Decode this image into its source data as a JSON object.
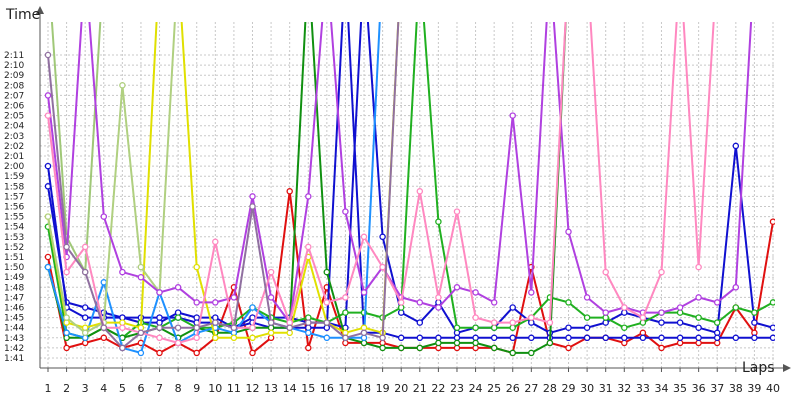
{
  "chart_data": {
    "type": "line",
    "ylabel": "Time",
    "xlabel": "Laps",
    "x_ticks": [
      "1",
      "2",
      "3",
      "4",
      "5",
      "6",
      "7",
      "8",
      "9",
      "10",
      "11",
      "12",
      "13",
      "14",
      "15",
      "16",
      "17",
      "18",
      "19",
      "20",
      "21",
      "22",
      "23",
      "24",
      "25",
      "26",
      "27",
      "28",
      "29",
      "30",
      "31",
      "32",
      "33",
      "34",
      "35",
      "36",
      "37",
      "38",
      "39",
      "40"
    ],
    "y_ticks": [
      "1:41",
      "1:42",
      "1:43",
      "1:44",
      "1:45",
      "1:46",
      "1:47",
      "1:48",
      "1:49",
      "1:50",
      "1:51",
      "1:52",
      "1:53",
      "1:54",
      "1:55",
      "1:56",
      "1:57",
      "1:58",
      "1:59",
      "2:00",
      "2:01",
      "2:02",
      "2:03",
      "2:04",
      "2:05",
      "2:06",
      "2:07",
      "2:08",
      "2:09",
      "2:10",
      "2:11"
    ],
    "xlim": [
      1,
      40
    ],
    "ylim_seconds": [
      100,
      133
    ],
    "grid": true,
    "legend": "none",
    "series": [
      {
        "color": "#e01010",
        "values": [
          111,
          102,
          102.5,
          103,
          102,
          102.5,
          101.5,
          102.5,
          101.5,
          103,
          108,
          101.5,
          103,
          117.5,
          102,
          108,
          102.5,
          102.5,
          102.5,
          102,
          102,
          102,
          102,
          102,
          102,
          101.5,
          110,
          102.5,
          102,
          103,
          103,
          102.5,
          103.5,
          102,
          102.5,
          102.5,
          102.5,
          106,
          103.5,
          114.5
        ]
      },
      {
        "color": "#1010d0",
        "values": [
          118,
          106.5,
          106,
          105.5,
          105,
          104.5,
          104.5,
          105.5,
          105,
          105,
          104,
          105,
          105,
          105,
          104.5,
          104.5,
          104,
          140,
          113,
          105.5,
          104.5,
          106.5,
          103.5,
          104,
          104,
          106,
          104.5,
          103.5,
          104,
          104,
          104.5,
          105.5,
          105,
          104.5,
          104.5,
          104,
          103.5,
          122,
          104.5,
          104
        ]
      },
      {
        "color": "#1010d0",
        "values": [
          120,
          106,
          105,
          105,
          105,
          105,
          105,
          105,
          104.5,
          104.5,
          104,
          104.5,
          104,
          104,
          104,
          104,
          140,
          103.5,
          103.5,
          103,
          103,
          103,
          103,
          103,
          103,
          103,
          103,
          103,
          103,
          103,
          103,
          103,
          103,
          103,
          103,
          103,
          103,
          103,
          103,
          103
        ]
      },
      {
        "color": "#20b020",
        "values": [
          114,
          103.5,
          103,
          104,
          103,
          104.5,
          104,
          105,
          104,
          104,
          104.5,
          106,
          105,
          104.5,
          105,
          104.5,
          105.5,
          105.5,
          105,
          106,
          140,
          114.5,
          104,
          104,
          104,
          104,
          105,
          107,
          106.5,
          105,
          105,
          104,
          104.5,
          105.5,
          105.5,
          105,
          104.5,
          106,
          105.5,
          106.5
        ]
      },
      {
        "color": "#109010",
        "values": [
          110,
          103,
          103,
          104,
          103,
          103.5,
          104,
          103,
          104,
          103.5,
          103.5,
          104,
          104,
          104,
          140,
          109.5,
          103,
          102.5,
          102,
          102,
          102,
          102.5,
          102.5,
          102.5,
          102,
          101.5,
          101.5,
          102.5,
          140,
          140,
          140,
          140,
          140,
          140,
          140,
          140,
          140,
          140,
          140,
          140
        ]
      },
      {
        "color": "#1e90ff",
        "values": [
          110,
          103.5,
          103,
          108.5,
          102,
          101.5,
          107.5,
          102.5,
          103.5,
          104,
          103.5,
          106,
          104.5,
          104,
          103.5,
          103,
          103,
          103,
          140,
          140,
          140,
          140,
          140,
          140,
          140,
          140,
          140,
          140,
          140,
          140,
          140,
          140,
          140,
          140,
          140,
          140,
          140,
          140,
          140,
          140
        ]
      },
      {
        "color": "#e0e000",
        "values": [
          115,
          104.5,
          104,
          104.5,
          104.5,
          104,
          140,
          140,
          110,
          103,
          103,
          103,
          103.5,
          103.5,
          111,
          104.5,
          103.5,
          104,
          103.5,
          140,
          140,
          140,
          140,
          140,
          140,
          140,
          140,
          140,
          140,
          140,
          140,
          140,
          140,
          140,
          140,
          140,
          140,
          140,
          140,
          140
        ]
      },
      {
        "color": "#a0c878",
        "values": [
          140,
          113,
          109.5,
          140,
          140,
          140,
          140,
          140,
          140,
          140,
          140,
          140,
          140,
          140,
          140,
          140,
          140,
          140,
          140,
          140,
          140,
          140,
          140,
          140,
          140,
          140,
          140,
          140,
          140,
          140,
          140,
          140,
          140,
          140,
          140,
          140,
          140,
          140,
          140,
          140
        ]
      },
      {
        "color": "#b0d080",
        "values": [
          115,
          105,
          103.5,
          104.5,
          128,
          110,
          107.5,
          140,
          140,
          140,
          140,
          140,
          140,
          140,
          140,
          140,
          140,
          140,
          140,
          140,
          140,
          140,
          140,
          140,
          140,
          140,
          140,
          140,
          140,
          140,
          140,
          140,
          140,
          140,
          140,
          140,
          140,
          140,
          140,
          140
        ]
      },
      {
        "color": "#b040e0",
        "values": [
          127,
          111,
          140,
          115,
          109.5,
          109,
          107.5,
          108,
          106.5,
          106.5,
          107,
          117,
          107,
          104.5,
          117,
          140,
          115.5,
          107.5,
          110,
          107,
          106.5,
          106,
          108,
          107.5,
          106.5,
          125,
          107.5,
          140,
          113.5,
          107,
          105.5,
          106,
          105.5,
          105.5,
          106,
          107,
          106.5,
          108,
          140,
          140
        ]
      },
      {
        "color": "#ff88c0",
        "values": [
          125,
          109.5,
          112,
          104,
          104,
          103.5,
          103,
          102.5,
          103,
          112.5,
          104,
          104,
          109.5,
          104.5,
          112,
          106.5,
          107,
          113,
          110,
          106.5,
          117.5,
          107,
          115.5,
          105,
          104.5,
          104.5,
          105,
          104.5,
          140,
          140,
          109.5,
          106,
          105,
          109.5,
          140,
          110,
          140,
          140,
          140,
          140
        ]
      },
      {
        "color": "#9070a0",
        "values": [
          131,
          112,
          109.5,
          104,
          102,
          103.5,
          104,
          104,
          104,
          104.5,
          104,
          116,
          104.5,
          104,
          104.5,
          104.5,
          103,
          103.5,
          103,
          140,
          140,
          140,
          140,
          140,
          140,
          140,
          140,
          140,
          140,
          140,
          140,
          140,
          140,
          140,
          140,
          140,
          140,
          140,
          140,
          140
        ]
      }
    ]
  }
}
